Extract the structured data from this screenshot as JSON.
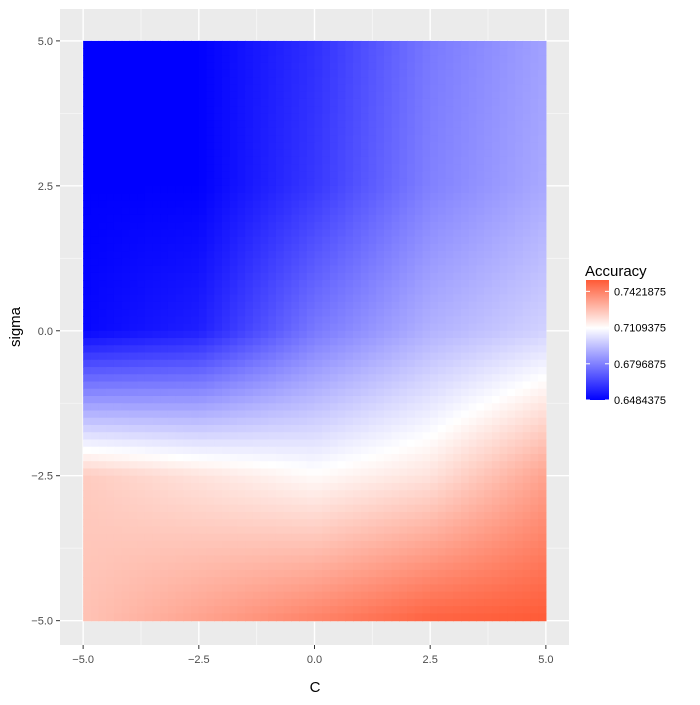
{
  "chart_data": {
    "type": "heatmap",
    "xlabel": "C",
    "ylabel": "sigma",
    "xlim": [
      -5.0,
      5.0
    ],
    "ylim": [
      -5.0,
      5.0
    ],
    "x_ticks": [
      -5.0,
      -2.5,
      0.0,
      2.5,
      5.0
    ],
    "x_tick_labels": [
      "−5.0",
      "−2.5",
      "0.0",
      "2.5",
      "5.0"
    ],
    "y_ticks": [
      5.0,
      2.5,
      0.0,
      -2.5,
      -5.0
    ],
    "y_tick_labels": [
      "5.0",
      "2.5",
      "0.0",
      "−2.5",
      "−5.0"
    ],
    "grid": true,
    "legend_position": "right",
    "legend": {
      "title": "Accuracy",
      "ticks": [
        0.7421875,
        0.7109375,
        0.6796875,
        0.6484375
      ],
      "tick_labels": [
        "0.7421875",
        "0.7109375",
        "0.6796875",
        "0.6484375"
      ],
      "range": [
        0.6484375,
        0.752
      ]
    },
    "color_scale": {
      "low": "#0000ff",
      "mid": "#ffffff",
      "high": "#ff5a36",
      "midpoint": 0.7109375
    },
    "grid_x": [
      -5.0,
      -2.5,
      0.0,
      2.5,
      5.0
    ],
    "grid_y": [
      5.0,
      2.5,
      0.0,
      -2.5,
      -5.0
    ],
    "values": [
      [
        0.6484375,
        0.6484375,
        0.66,
        0.678,
        0.688
      ],
      [
        0.6484375,
        0.6484375,
        0.662,
        0.68,
        0.69
      ],
      [
        0.65,
        0.656,
        0.678,
        0.692,
        0.7
      ],
      [
        0.724,
        0.718,
        0.712,
        0.718,
        0.734
      ],
      [
        0.726,
        0.734,
        0.742,
        0.75,
        0.752
      ]
    ]
  }
}
